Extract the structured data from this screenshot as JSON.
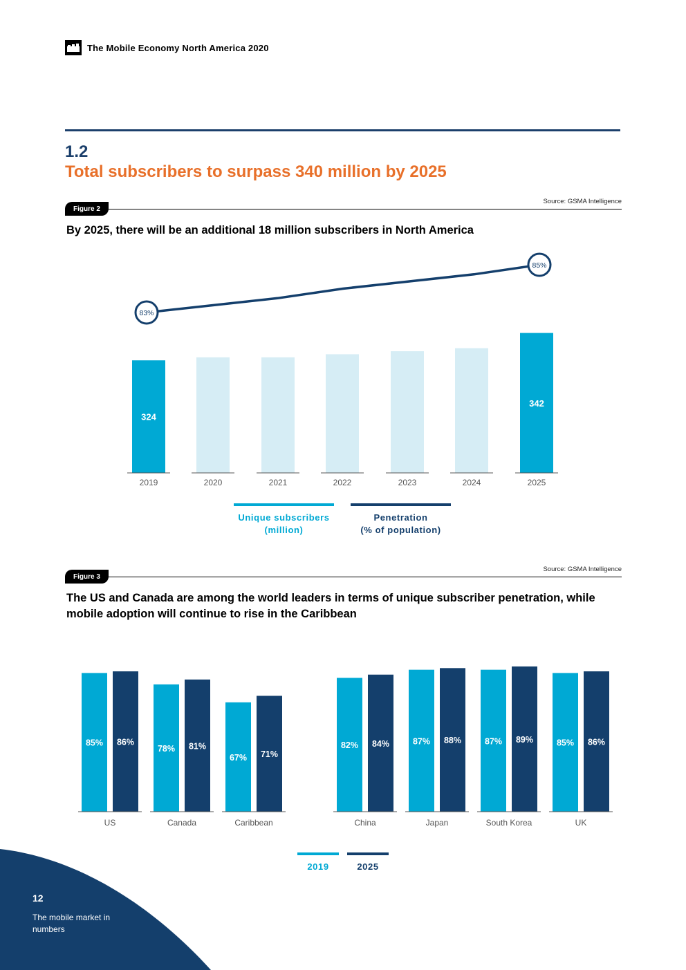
{
  "header": {
    "title": "The Mobile Economy North America 2020"
  },
  "section": {
    "number": "1.2",
    "title": "Total subscribers to surpass 340 million by 2025"
  },
  "figure2": {
    "label": "Figure 2",
    "source": "Source: GSMA Intelligence",
    "title": "By 2025, there will be an additional 18 million subscribers in North America"
  },
  "figure3": {
    "label": "Figure 3",
    "source": "Source: GSMA Intelligence",
    "title": "The US and Canada are among the world leaders in terms of unique subscriber penetration, while mobile adoption will continue to rise in the Caribbean"
  },
  "colors": {
    "light_blue": "#00a9d4",
    "pale_blue": "#d6edf5",
    "dark_navy": "#143f6c",
    "orange": "#e8702a"
  },
  "chart_data": [
    {
      "type": "bar",
      "title": "By 2025, there will be an additional 18 million subscribers in North America",
      "categories": [
        "2019",
        "2020",
        "2021",
        "2022",
        "2023",
        "2024",
        "2025"
      ],
      "series": [
        {
          "name": "Unique subscribers (million)",
          "values": [
            324,
            326,
            326,
            328,
            330,
            332,
            342
          ]
        },
        {
          "name": "Penetration (% of population)",
          "type": "line",
          "values": [
            83,
            83.3,
            83.6,
            84,
            84.3,
            84.6,
            85
          ]
        }
      ],
      "bar_labels": {
        "2019": "324",
        "2025": "342"
      },
      "line_labels": {
        "2019": "83%",
        "2025": "85%"
      },
      "highlight": [
        "2019",
        "2025"
      ],
      "ylim": [
        0,
        350
      ],
      "legend": [
        {
          "line1": "Unique subscribers",
          "line2": "(million)"
        },
        {
          "line1": "Penetration",
          "line2": "(% of population)"
        }
      ]
    },
    {
      "type": "bar",
      "title": "The US and Canada are among the world leaders in terms of unique subscriber penetration, while mobile adoption will continue to rise in the Caribbean",
      "categories": [
        "US",
        "Canada",
        "Caribbean",
        "China",
        "Japan",
        "South Korea",
        "UK"
      ],
      "series": [
        {
          "name": "2019",
          "values": [
            85,
            78,
            67,
            82,
            87,
            87,
            85
          ]
        },
        {
          "name": "2025",
          "values": [
            86,
            81,
            71,
            84,
            88,
            89,
            86
          ]
        }
      ],
      "value_suffix": "%",
      "ylim": [
        0,
        100
      ],
      "legend": [
        "2019",
        "2025"
      ]
    }
  ],
  "footer": {
    "page_number": "12",
    "section_text": "The mobile market in numbers"
  }
}
